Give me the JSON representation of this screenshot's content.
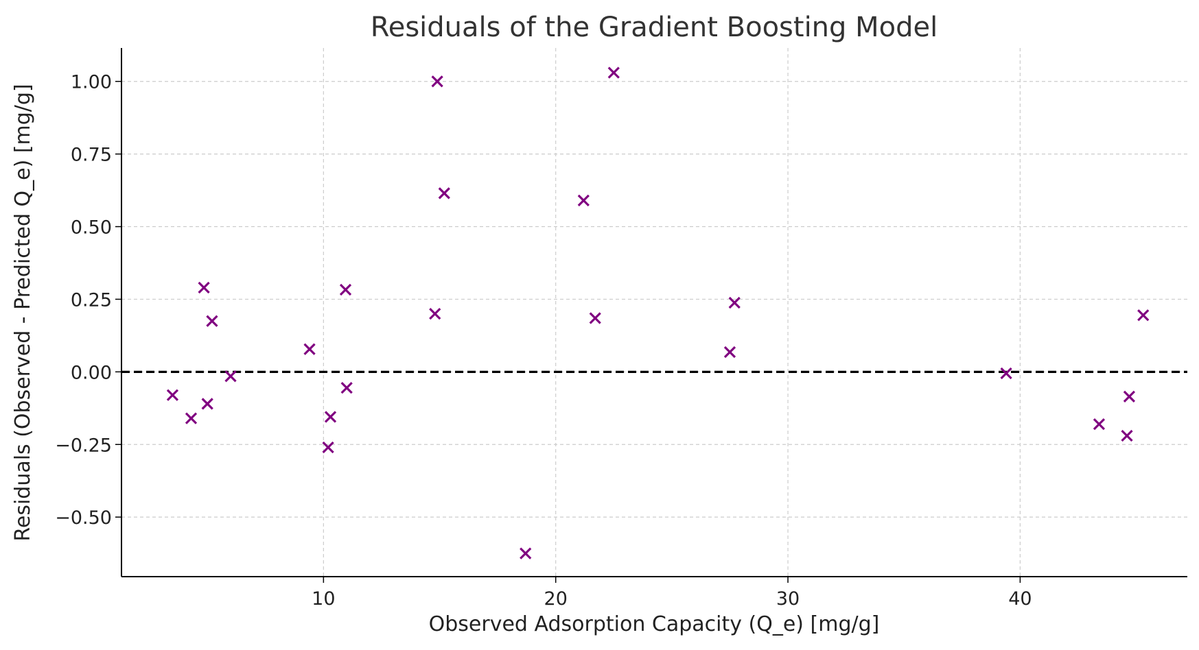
{
  "chart_data": {
    "type": "scatter",
    "title": "Residuals of the Gradient Boosting Model",
    "xlabel": "Observed Adsorption Capacity (Q_e) [mg/g]",
    "ylabel": "Residuals (Observed - Predicted Q_e) [mg/g]",
    "xlim": [
      1.3,
      47.2
    ],
    "ylim": [
      -0.705,
      1.115
    ],
    "x_ticks": [
      {
        "value": 10,
        "label": "10"
      },
      {
        "value": 20,
        "label": "20"
      },
      {
        "value": 30,
        "label": "30"
      },
      {
        "value": 40,
        "label": "40"
      }
    ],
    "y_ticks": [
      {
        "value": -0.5,
        "label": "−0.50"
      },
      {
        "value": -0.25,
        "label": "−0.25"
      },
      {
        "value": 0,
        "label": "0.00"
      },
      {
        "value": 0.25,
        "label": "0.25"
      },
      {
        "value": 0.5,
        "label": "0.50"
      },
      {
        "value": 0.75,
        "label": "0.75"
      },
      {
        "value": 1.0,
        "label": "1.00"
      }
    ],
    "grid": true,
    "reference_line": {
      "y": 0,
      "style": "dashed",
      "color": "#000000"
    },
    "marker": "x",
    "marker_color": "#800080",
    "points": [
      {
        "x": 3.5,
        "y": -0.08
      },
      {
        "x": 4.3,
        "y": -0.16
      },
      {
        "x": 4.85,
        "y": 0.29
      },
      {
        "x": 5.0,
        "y": -0.11
      },
      {
        "x": 5.2,
        "y": 0.175
      },
      {
        "x": 6.0,
        "y": -0.015
      },
      {
        "x": 9.4,
        "y": 0.078
      },
      {
        "x": 10.2,
        "y": -0.26
      },
      {
        "x": 10.3,
        "y": -0.155
      },
      {
        "x": 10.95,
        "y": 0.283
      },
      {
        "x": 11.0,
        "y": -0.055
      },
      {
        "x": 14.8,
        "y": 0.2
      },
      {
        "x": 14.9,
        "y": 1.0
      },
      {
        "x": 15.2,
        "y": 0.615
      },
      {
        "x": 18.7,
        "y": -0.625
      },
      {
        "x": 21.2,
        "y": 0.59
      },
      {
        "x": 21.7,
        "y": 0.185
      },
      {
        "x": 22.5,
        "y": 1.03
      },
      {
        "x": 27.5,
        "y": 0.068
      },
      {
        "x": 27.7,
        "y": 0.238
      },
      {
        "x": 39.4,
        "y": -0.005
      },
      {
        "x": 43.4,
        "y": -0.18
      },
      {
        "x": 44.6,
        "y": -0.22
      },
      {
        "x": 44.7,
        "y": -0.085
      },
      {
        "x": 45.3,
        "y": 0.195
      }
    ]
  }
}
